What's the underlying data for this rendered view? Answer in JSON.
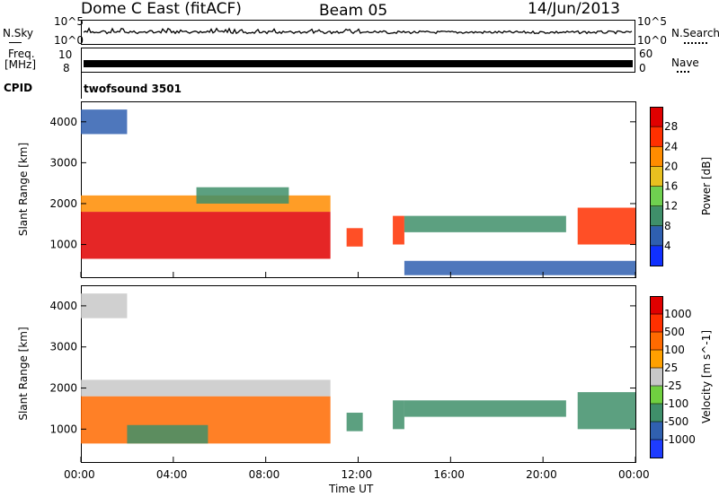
{
  "header": {
    "station": "Dome C East (fitACF)",
    "beam": "Beam 05",
    "date": "14/Jun/2013"
  },
  "top_strips": {
    "nsky_label": "N.Sky",
    "nsearch_label": "N.Search",
    "noise_ticks_left": [
      "10^5",
      "10^0"
    ],
    "noise_ticks_right": [
      "10^5",
      "10^0"
    ],
    "freq_label_line1": "Freq.",
    "freq_label_line2": "[MHz]",
    "freq_ticks_left": [
      "10",
      "8"
    ],
    "nave_label": "Nave",
    "nave_ticks_right": [
      "60",
      "0"
    ],
    "cpid_label": "CPID",
    "cpid_value": "twofsound 3501"
  },
  "x_axis": {
    "label": "Time UT",
    "ticks": [
      "00:00",
      "04:00",
      "08:00",
      "12:00",
      "16:00",
      "20:00",
      "00:00"
    ]
  },
  "chart_data": [
    {
      "type": "heatmap",
      "name": "power",
      "xlabel": "Time UT",
      "ylabel": "Slant Range [km]",
      "xlim": [
        0,
        24
      ],
      "ylim": [
        200,
        4500
      ],
      "yticks": [
        1000,
        2000,
        3000,
        4000
      ],
      "colorbar": {
        "label": "Power [dB]",
        "ticks": [
          "4",
          "8",
          "12",
          "16",
          "20",
          "24",
          "28"
        ],
        "colors": [
          "#1030ff",
          "#2f5fb0",
          "#3f8f6a",
          "#6fd050",
          "#e8c020",
          "#ff8c00",
          "#ff3000",
          "#e00000"
        ]
      },
      "regions": [
        {
          "t": [
            0.0,
            2.0
          ],
          "r": [
            3700,
            4300
          ],
          "level": "#2f5fb0"
        },
        {
          "t": [
            0.0,
            10.8
          ],
          "r": [
            650,
            1800
          ],
          "level": "#e00000"
        },
        {
          "t": [
            0.0,
            10.8
          ],
          "r": [
            1800,
            2200
          ],
          "level": "#ff8c00"
        },
        {
          "t": [
            5.0,
            9.0
          ],
          "r": [
            2000,
            2400
          ],
          "level": "#3f8f6a"
        },
        {
          "t": [
            11.5,
            12.2
          ],
          "r": [
            950,
            1400
          ],
          "level": "#ff3000"
        },
        {
          "t": [
            13.5,
            14.0
          ],
          "r": [
            1000,
            1700
          ],
          "level": "#ff3000"
        },
        {
          "t": [
            14.0,
            21.0
          ],
          "r": [
            1300,
            1700
          ],
          "level": "#3f8f6a"
        },
        {
          "t": [
            21.5,
            24.0
          ],
          "r": [
            1000,
            1900
          ],
          "level": "#ff3000"
        },
        {
          "t": [
            14.0,
            24.0
          ],
          "r": [
            250,
            600
          ],
          "level": "#2f5fb0"
        }
      ]
    },
    {
      "type": "heatmap",
      "name": "velocity",
      "xlabel": "Time UT",
      "ylabel": "Slant Range [km]",
      "xlim": [
        0,
        24
      ],
      "ylim": [
        200,
        4500
      ],
      "yticks": [
        1000,
        2000,
        3000,
        4000
      ],
      "colorbar": {
        "label": "Velocity [m s^-1]",
        "ticks": [
          "1000",
          "500",
          "100",
          "25",
          "-25",
          "-100",
          "-500",
          "-1000"
        ],
        "colors": [
          "#1e3cff",
          "#3060b0",
          "#3f8f6a",
          "#70d040",
          "#c8c8c8",
          "#ffa000",
          "#ff6a00",
          "#ff3000",
          "#e00000"
        ]
      },
      "regions": [
        {
          "t": [
            0.0,
            2.0
          ],
          "r": [
            3700,
            4300
          ],
          "level": "#c8c8c8"
        },
        {
          "t": [
            0.0,
            10.8
          ],
          "r": [
            650,
            1800
          ],
          "level": "#ff6a00"
        },
        {
          "t": [
            0.0,
            10.8
          ],
          "r": [
            1800,
            2200
          ],
          "level": "#c8c8c8"
        },
        {
          "t": [
            2.0,
            5.5
          ],
          "r": [
            650,
            1100
          ],
          "level": "#3f8f6a"
        },
        {
          "t": [
            11.5,
            12.2
          ],
          "r": [
            950,
            1400
          ],
          "level": "#3f8f6a"
        },
        {
          "t": [
            13.5,
            14.0
          ],
          "r": [
            1000,
            1700
          ],
          "level": "#3f8f6a"
        },
        {
          "t": [
            14.0,
            21.0
          ],
          "r": [
            1300,
            1700
          ],
          "level": "#3f8f6a"
        },
        {
          "t": [
            21.5,
            24.0
          ],
          "r": [
            1000,
            1900
          ],
          "level": "#3f8f6a"
        }
      ]
    }
  ]
}
